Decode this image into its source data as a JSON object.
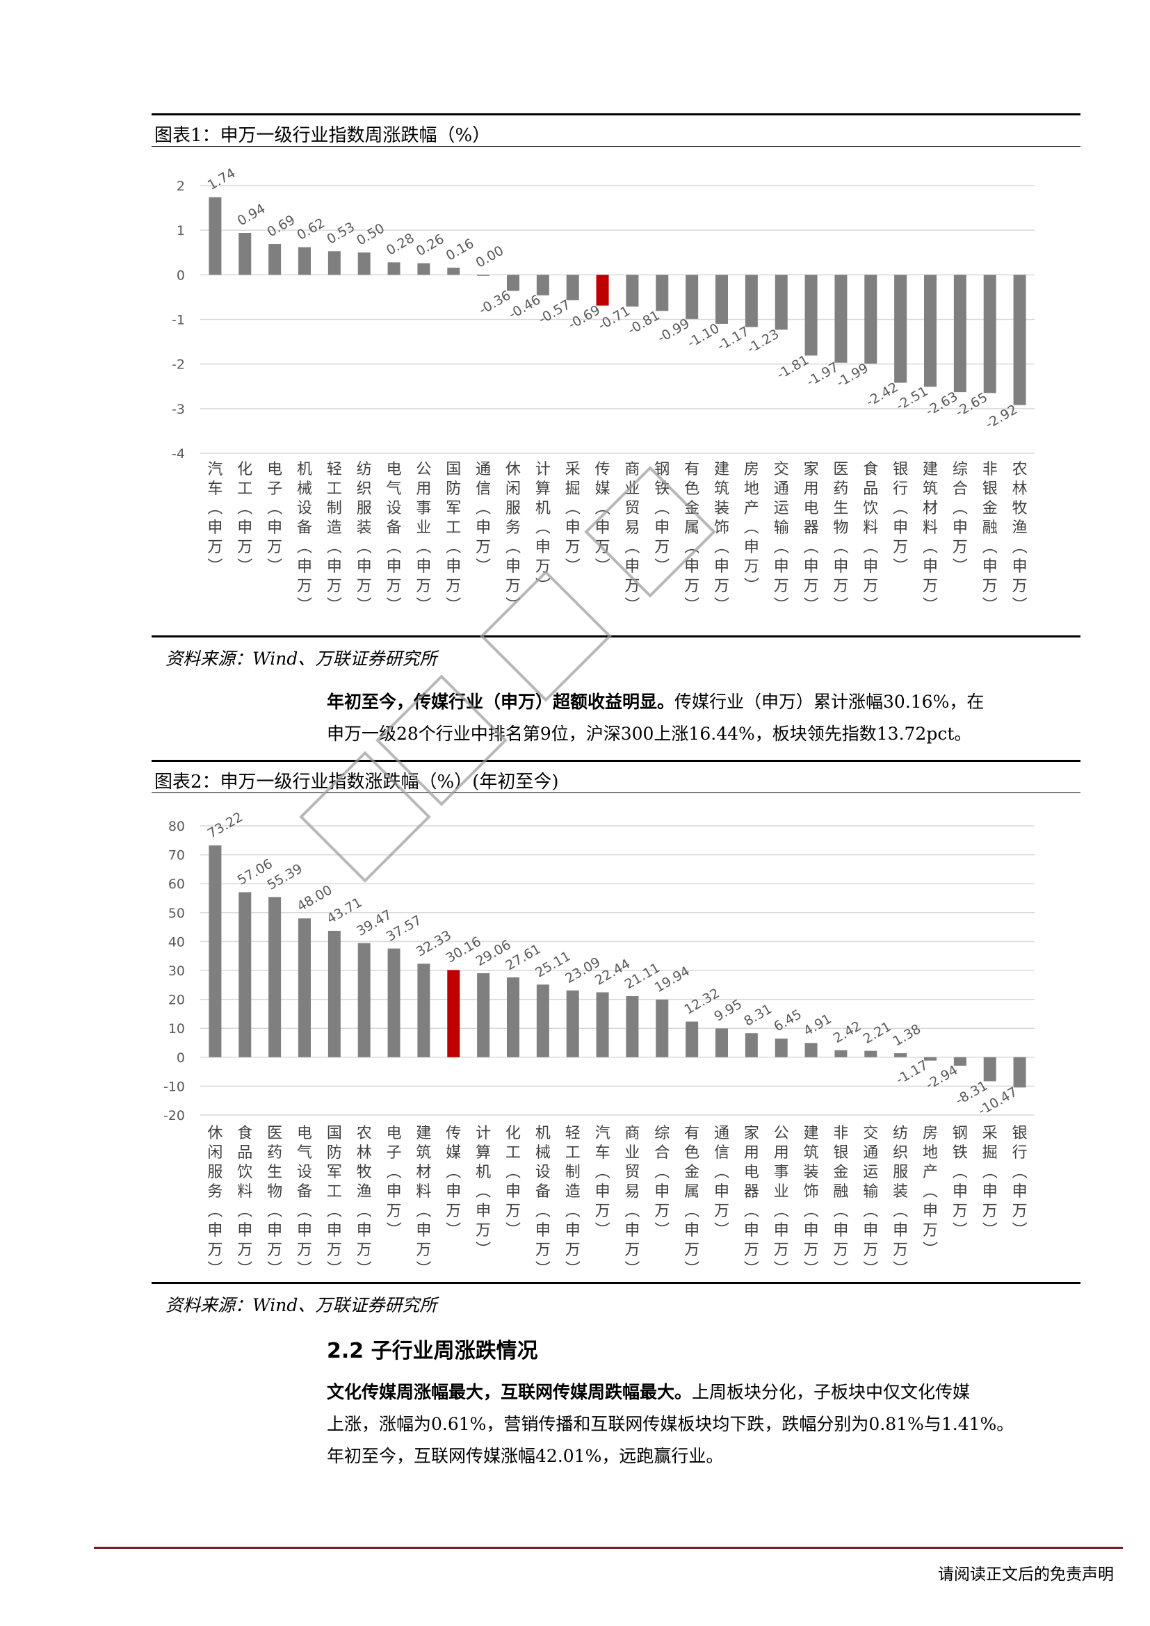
{
  "figure1": {
    "title": "图表1：申万一级行业指数周涨跌幅（%）",
    "source": "资料来源：Wind、万联证券研究所"
  },
  "figure2": {
    "title": "图表2：申万一级行业指数涨跌幅（%）(年初至今)",
    "source": "资料来源：Wind、万联证券研究所"
  },
  "paragraph1": {
    "lead": "年初至今，传媒行业（申万）超额收益明显。",
    "line1_rest": "传媒行业（申万）累计涨幅30.16%，在",
    "line2": "申万一级28个行业中排名第9位，沪深300上涨16.44%，板块领先指数13.72pct。"
  },
  "section": {
    "heading": "2.2 子行业周涨跌情况"
  },
  "paragraph2": {
    "lead": "文化传媒周涨幅最大，互联网传媒周跌幅最大。",
    "line1_rest": "上周板块分化，子板块中仅文化传媒",
    "line2": "上涨，涨幅为0.61%，营销传播和互联网传媒板块均下跌，跌幅分别为0.81%与1.41%。",
    "line3": "年初至今，互联网传媒涨幅42.01%，远跑赢行业。"
  },
  "footer": {
    "disclaimer": "请阅读正文后的免责声明"
  },
  "colors": {
    "bar": "#7f7f7f",
    "highlight": "#c00000",
    "grid": "#d9d9d9",
    "footer_rule": "#7a1a1a"
  },
  "chart_data": [
    {
      "type": "bar",
      "title": "图表1：申万一级行业指数周涨跌幅（%）",
      "xlabel": "",
      "ylabel": "",
      "ylim": [
        -4,
        2
      ],
      "yticks": [
        2,
        1,
        0,
        -1,
        -2,
        -3,
        -4
      ],
      "grid": true,
      "highlight_category": "传媒(申万)",
      "categories": [
        "汽车(申万)",
        "化工(申万)",
        "电子(申万)",
        "机械设备(申万)",
        "轻工制造(申万)",
        "纺织服装(申万)",
        "电气设备(申万)",
        "公用事业(申万)",
        "国防军工(申万)",
        "通信(申万)",
        "休闲服务(申万)",
        "计算机(申万)",
        "采掘(申万)",
        "传媒(申万)",
        "商业贸易(申万)",
        "钢铁(申万)",
        "有色金属(申万)",
        "建筑装饰(申万)",
        "房地产(申万)",
        "交通运输(申万)",
        "家用电器(申万)",
        "医药生物(申万)",
        "食品饮料(申万)",
        "银行(申万)",
        "建筑材料(申万)",
        "综合(申万)",
        "非银金融(申万)",
        "农林牧渔(申万)"
      ],
      "values": [
        1.74,
        0.94,
        0.69,
        0.62,
        0.53,
        0.5,
        0.28,
        0.26,
        0.16,
        0.0,
        -0.36,
        -0.46,
        -0.57,
        -0.69,
        -0.71,
        -0.81,
        -0.99,
        -1.1,
        -1.17,
        -1.23,
        -1.81,
        -1.97,
        -1.99,
        -2.42,
        -2.51,
        -2.63,
        -2.65,
        -2.92
      ],
      "labels": [
        "1.74",
        "0.94",
        "0.69",
        "0.62",
        "0.53",
        "0.50",
        "0.28",
        "0.26",
        "0.16",
        "0.00",
        "-0.36",
        "-0.46",
        "-0.57",
        "-0.69",
        "-0.71",
        "-0.81",
        "-0.99",
        "-1.10",
        "-1.17",
        "-1.23",
        "-1.81",
        "-1.97",
        "-1.99",
        "-2.42",
        "-2.51",
        "-2.63",
        "-2.65",
        "-2.92"
      ]
    },
    {
      "type": "bar",
      "title": "图表2：申万一级行业指数涨跌幅（%）(年初至今)",
      "xlabel": "",
      "ylabel": "",
      "ylim": [
        -20,
        80
      ],
      "yticks": [
        80,
        70,
        60,
        50,
        40,
        30,
        20,
        10,
        0,
        -10,
        -20
      ],
      "grid": true,
      "highlight_category": "传媒(申万)",
      "categories": [
        "休闲服务(申万)",
        "食品饮料(申万)",
        "医药生物(申万)",
        "电气设备(申万)",
        "国防军工(申万)",
        "农林牧渔(申万)",
        "电子(申万)",
        "建筑材料(申万)",
        "传媒(申万)",
        "计算机(申万)",
        "化工(申万)",
        "机械设备(申万)",
        "轻工制造(申万)",
        "汽车(申万)",
        "商业贸易(申万)",
        "综合(申万)",
        "有色金属(申万)",
        "通信(申万)",
        "家用电器(申万)",
        "公用事业(申万)",
        "建筑装饰(申万)",
        "非银金融(申万)",
        "交通运输(申万)",
        "纺织服装(申万)",
        "房地产(申万)",
        "钢铁(申万)",
        "采掘(申万)",
        "银行(申万)"
      ],
      "values": [
        73.22,
        57.06,
        55.39,
        48.0,
        43.71,
        39.47,
        37.57,
        32.33,
        30.16,
        29.06,
        27.61,
        25.11,
        23.09,
        22.44,
        21.11,
        19.94,
        12.32,
        9.95,
        8.31,
        6.45,
        4.91,
        2.42,
        2.21,
        1.38,
        -1.17,
        -2.94,
        -8.31,
        -10.47
      ],
      "labels": [
        "73.22",
        "57.06",
        "55.39",
        "48.00",
        "43.71",
        "39.47",
        "37.57",
        "32.33",
        "30.16",
        "29.06",
        "27.61",
        "25.11",
        "23.09",
        "22.44",
        "21.11",
        "19.94",
        "12.32",
        "9.95",
        "8.31",
        "6.45",
        "4.91",
        "2.42",
        "2.21",
        "1.38",
        "-1.17",
        "-2.94",
        "-8.31",
        "-10.47"
      ]
    }
  ]
}
